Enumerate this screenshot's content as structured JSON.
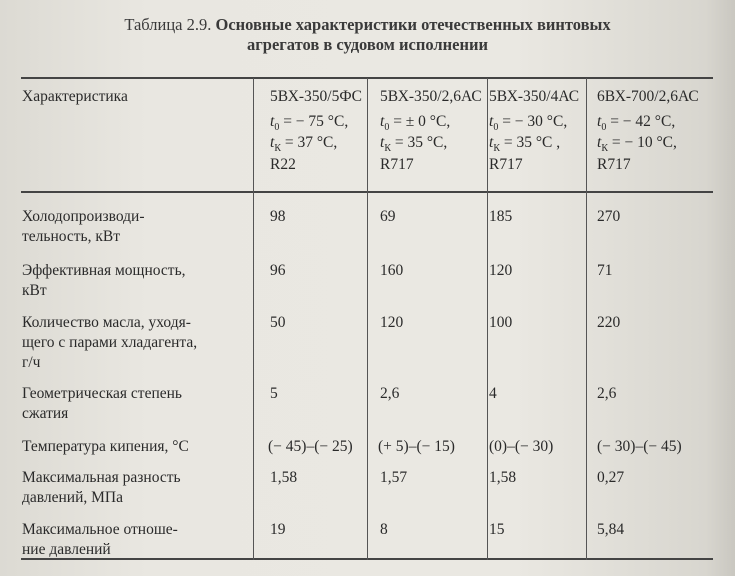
{
  "title": {
    "label": "Таблица 2.9.",
    "line1": "Основные характеристики отечественных винтовых",
    "line2": "агрегатов в судовом исполнении"
  },
  "header": {
    "characteristic": "Характеристика",
    "columns": [
      {
        "model": "5ВХ-350/5ФС",
        "t0": "= − 75 °C,",
        "tk": "= 37 °C,",
        "refrigerant": "R22"
      },
      {
        "model": "5ВХ-350/2,6АС",
        "t0": "= ± 0 °C,",
        "tk": "= 35 °C,",
        "refrigerant": "R717"
      },
      {
        "model": "5ВХ-350/4АС",
        "t0": "= − 30 °C,",
        "tk": "= 35 °C ,",
        "refrigerant": "R717"
      },
      {
        "model": "6ВХ-700/2,6АС",
        "t0": "= − 42 °C,",
        "tk": "= − 10 °C,",
        "refrigerant": "R717"
      }
    ],
    "t0_symbol": "t",
    "t0_sub": "0",
    "tk_symbol": "t",
    "tk_sub": "К"
  },
  "rows": [
    {
      "label": [
        "Холодопроизводи-",
        "тельность, кВт"
      ],
      "values": [
        "98",
        "69",
        "185",
        "270"
      ]
    },
    {
      "label": [
        "Эффективная мощность,",
        "кВт"
      ],
      "values": [
        "96",
        "160",
        "120",
        "71"
      ]
    },
    {
      "label": [
        "Количество масла, уходя-",
        "щего с парами хладагента,",
        "г/ч"
      ],
      "values": [
        "50",
        "120",
        "100",
        "220"
      ]
    },
    {
      "label": [
        "Геометрическая степень",
        "сжатия"
      ],
      "values": [
        "5",
        "2,6",
        "4",
        "2,6"
      ]
    },
    {
      "label": [
        "Температура кипения, °C"
      ],
      "values": [
        "(− 45)–(− 25)",
        "(+ 5)–(− 15)",
        "(0)–(− 30)",
        "(− 30)–(− 45)"
      ]
    },
    {
      "label": [
        "Максимальная разность",
        "давлений, МПа"
      ],
      "values": [
        "1,58",
        "1,57",
        "1,58",
        "0,27"
      ]
    },
    {
      "label": [
        "Максимальное отноше-",
        "ние давлений"
      ],
      "values": [
        "19",
        "8",
        "15",
        "5,84"
      ]
    }
  ]
}
